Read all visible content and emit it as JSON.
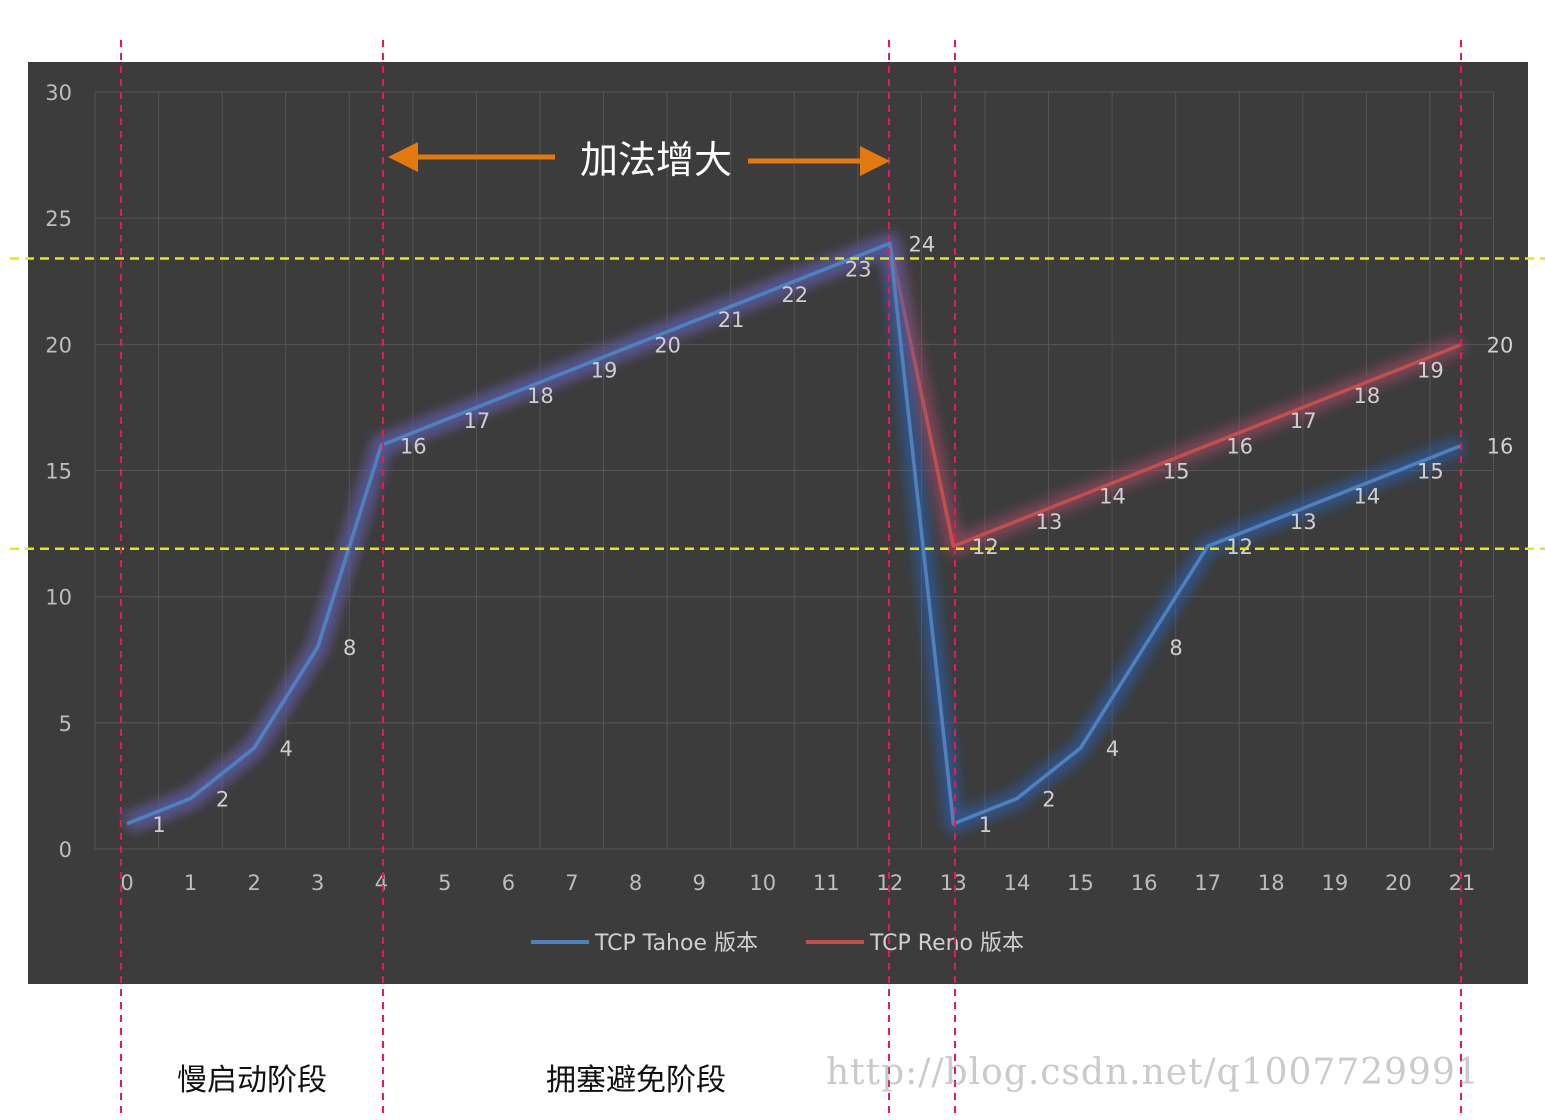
{
  "chart_data": {
    "type": "line",
    "x": [
      0,
      1,
      2,
      3,
      4,
      5,
      6,
      7,
      8,
      9,
      10,
      11,
      12,
      13,
      14,
      15,
      16,
      17,
      18,
      19,
      20,
      21
    ],
    "xticks": [
      "0",
      "1",
      "2",
      "3",
      "4",
      "5",
      "6",
      "7",
      "8",
      "9",
      "10",
      "11",
      "12",
      "13",
      "14",
      "15",
      "16",
      "17",
      "18",
      "19",
      "20",
      "21"
    ],
    "ylim": [
      0,
      30
    ],
    "yticks": [
      0,
      5,
      10,
      15,
      20,
      25,
      30
    ],
    "grid": true,
    "legend": "bottom",
    "series": [
      {
        "name": "TCP Tahoe 版本",
        "color": "#4f81bd",
        "values": [
          1,
          2,
          4,
          8,
          16,
          17,
          18,
          19,
          20,
          21,
          22,
          23,
          24,
          1,
          2,
          4,
          8,
          12,
          13,
          14,
          15,
          16
        ]
      },
      {
        "name": "TCP Reno 版本",
        "color": "#c0504d",
        "values": [
          1,
          2,
          4,
          8,
          16,
          17,
          18,
          19,
          20,
          21,
          22,
          23,
          24,
          12,
          13,
          14,
          15,
          16,
          17,
          18,
          19,
          20
        ]
      }
    ],
    "annotations": {
      "additive_increase": "加法增大",
      "phase_slow_start": "慢启动阶段",
      "phase_congestion_avoidance": "拥塞避免阶段"
    },
    "threshold_lines": [
      23.4,
      11.9
    ],
    "phase_boundaries_x": [
      0,
      4,
      12,
      13,
      21
    ]
  },
  "colors": {
    "plot_background": "#3c3c3c",
    "gridline": "#555555",
    "boundary_line": "#e8195a",
    "threshold_line": "#e6e619",
    "arrow": "#e27a11"
  },
  "watermark": "http://blog.csdn.net/q1007729991"
}
